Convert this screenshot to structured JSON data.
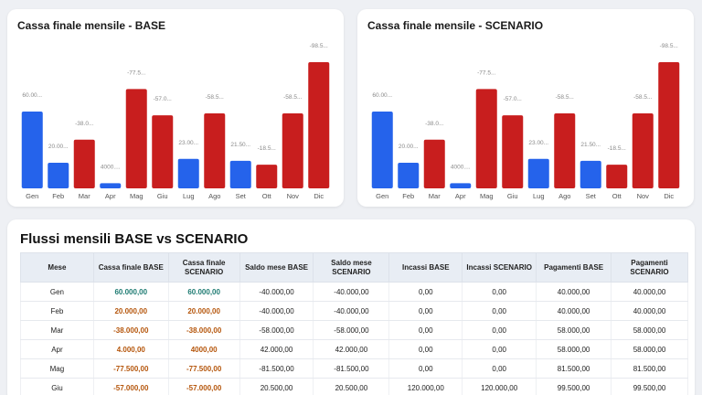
{
  "charts": {
    "base_title": "Cassa finale mensile - BASE",
    "scenario_title": "Cassa finale mensile - SCENARIO"
  },
  "chart_data": [
    {
      "type": "bar",
      "title": "Cassa finale mensile - BASE",
      "categories": [
        "Gen",
        "Feb",
        "Mar",
        "Apr",
        "Mag",
        "Giu",
        "Lug",
        "Ago",
        "Set",
        "Ott",
        "Nov",
        "Dic"
      ],
      "values": [
        60000,
        20000,
        -38000,
        4000,
        -77500,
        -57000,
        23000,
        -58500,
        21500,
        -18500,
        -58500,
        -98500
      ],
      "labels": [
        "60.00...",
        "20.00...",
        "-38.0...",
        "4000....",
        "-77.5...",
        "-57.0...",
        "23.00...",
        "-58.5...",
        "21.50...",
        "-18.5...",
        "-58.5...",
        "-98.5..."
      ],
      "colors": {
        "positive": "#2563eb",
        "negative": "#c81e1e"
      }
    },
    {
      "type": "bar",
      "title": "Cassa finale mensile - SCENARIO",
      "categories": [
        "Gen",
        "Feb",
        "Mar",
        "Apr",
        "Mag",
        "Giu",
        "Lug",
        "Ago",
        "Set",
        "Ott",
        "Nov",
        "Dic"
      ],
      "values": [
        60000,
        20000,
        -38000,
        4000,
        -77500,
        -57000,
        23000,
        -58500,
        21500,
        -18500,
        -58500,
        -98500
      ],
      "labels": [
        "60.00...",
        "20.00...",
        "-38.0...",
        "4000....",
        "-77.5...",
        "-57.0...",
        "23.00...",
        "-58.5...",
        "21.50...",
        "-18.5...",
        "-58.5...",
        "-98.5..."
      ],
      "colors": {
        "positive": "#2563eb",
        "negative": "#c81e1e"
      }
    }
  ],
  "table": {
    "title": "Flussi mensili BASE vs SCENARIO",
    "headers": [
      "Mese",
      "Cassa finale BASE",
      "Cassa finale SCENARIO",
      "Saldo mese BASE",
      "Saldo mese SCENARIO",
      "Incassi BASE",
      "Incassi SCENARIO",
      "Pagamenti BASE",
      "Pagamenti SCENARIO"
    ],
    "rows": [
      {
        "mese": "Gen",
        "cassa_base": "60.000,00",
        "cassa_scen": "60.000,00",
        "sign": "pos",
        "saldo_base": "-40.000,00",
        "saldo_scen": "-40.000,00",
        "inc_base": "0,00",
        "inc_scen": "0,00",
        "pag_base": "40.000,00",
        "pag_scen": "40.000,00"
      },
      {
        "mese": "Feb",
        "cassa_base": "20.000,00",
        "cassa_scen": "20.000,00",
        "sign": "neg",
        "saldo_base": "-40.000,00",
        "saldo_scen": "-40.000,00",
        "inc_base": "0,00",
        "inc_scen": "0,00",
        "pag_base": "40.000,00",
        "pag_scen": "40.000,00"
      },
      {
        "mese": "Mar",
        "cassa_base": "-38.000,00",
        "cassa_scen": "-38.000,00",
        "sign": "neg",
        "saldo_base": "-58.000,00",
        "saldo_scen": "-58.000,00",
        "inc_base": "0,00",
        "inc_scen": "0,00",
        "pag_base": "58.000,00",
        "pag_scen": "58.000,00"
      },
      {
        "mese": "Apr",
        "cassa_base": "4.000,00",
        "cassa_scen": "4000,00",
        "sign": "neg",
        "saldo_base": "42.000,00",
        "saldo_scen": "42.000,00",
        "inc_base": "0,00",
        "inc_scen": "0,00",
        "pag_base": "58.000,00",
        "pag_scen": "58.000,00"
      },
      {
        "mese": "Mag",
        "cassa_base": "-77.500,00",
        "cassa_scen": "-77.500,00",
        "sign": "neg",
        "saldo_base": "-81.500,00",
        "saldo_scen": "-81.500,00",
        "inc_base": "0,00",
        "inc_scen": "0,00",
        "pag_base": "81.500,00",
        "pag_scen": "81.500,00"
      },
      {
        "mese": "Giu",
        "cassa_base": "-57.000,00",
        "cassa_scen": "-57.000,00",
        "sign": "neg",
        "saldo_base": "20.500,00",
        "saldo_scen": "20.500,00",
        "inc_base": "120.000,00",
        "inc_scen": "120.000,00",
        "pag_base": "99.500,00",
        "pag_scen": "99.500,00"
      }
    ]
  }
}
